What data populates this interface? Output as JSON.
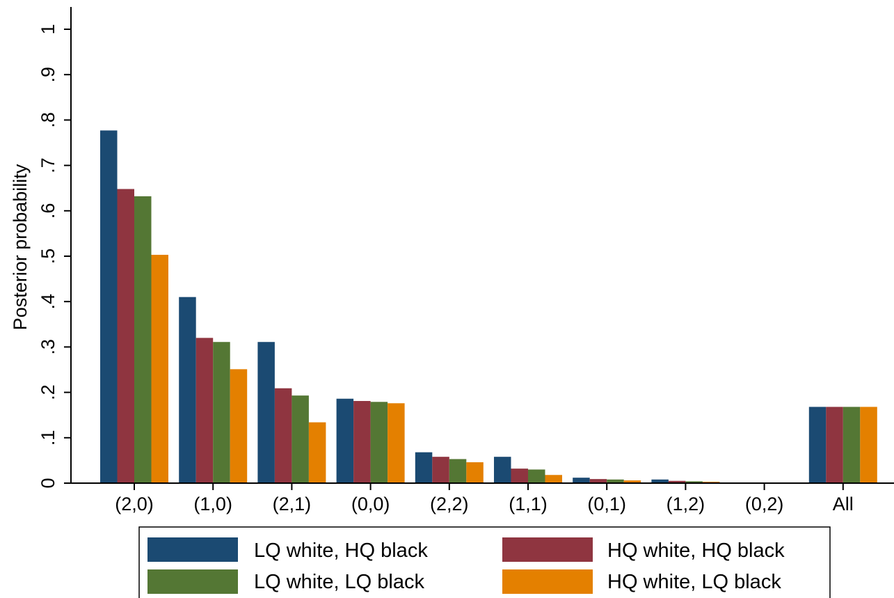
{
  "chart_data": {
    "type": "bar",
    "title": "",
    "xlabel": "",
    "ylabel": "Posterior probability",
    "ylim": [
      0,
      1
    ],
    "yticks": [
      0,
      0.1,
      0.2,
      0.3,
      0.4,
      0.5,
      0.6,
      0.7,
      0.8,
      0.9,
      1
    ],
    "ytick_labels": [
      "0",
      ".1",
      ".2",
      ".3",
      ".4",
      ".5",
      ".6",
      ".7",
      ".8",
      ".9",
      "1"
    ],
    "categories": [
      "(2,0)",
      "(1,0)",
      "(2,1)",
      "(0,0)",
      "(2,2)",
      "(1,1)",
      "(0,1)",
      "(1,2)",
      "(0,2)",
      "All"
    ],
    "grid": false,
    "legend_position": "bottom",
    "series": [
      {
        "name": "LQ white, HQ black",
        "color": "#1b4a72",
        "values": [
          0.777,
          0.41,
          0.311,
          0.186,
          0.068,
          0.058,
          0.012,
          0.008,
          0.001,
          0.168
        ]
      },
      {
        "name": "HQ white, HQ black",
        "color": "#8f3540",
        "values": [
          0.648,
          0.32,
          0.209,
          0.181,
          0.058,
          0.032,
          0.009,
          0.005,
          0.001,
          0.168
        ]
      },
      {
        "name": "LQ white, LQ black",
        "color": "#547734",
        "values": [
          0.632,
          0.311,
          0.193,
          0.179,
          0.053,
          0.03,
          0.008,
          0.004,
          0.001,
          0.168
        ]
      },
      {
        "name": "HQ white, LQ black",
        "color": "#e48000",
        "values": [
          0.503,
          0.251,
          0.134,
          0.176,
          0.046,
          0.018,
          0.006,
          0.003,
          0.001,
          0.168
        ]
      }
    ]
  }
}
